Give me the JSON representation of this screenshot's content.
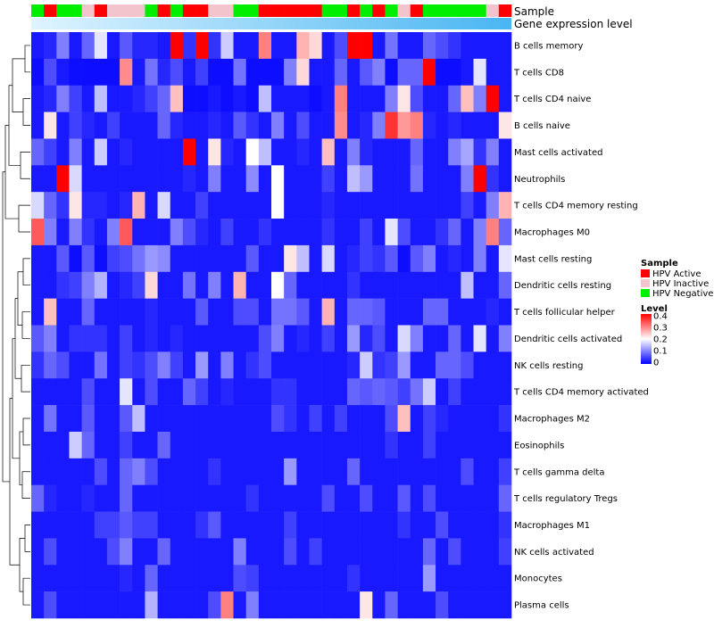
{
  "chart_data": {
    "type": "heatmap",
    "annotation_labels": {
      "sample": "Sample",
      "gene": "Gene expression level"
    },
    "rows": [
      "B cells memory",
      "T cells CD8",
      "T cells CD4 naive",
      "B cells naive",
      "Mast cells activated",
      "Neutrophils",
      "T cells CD4 memory resting",
      "Macrophages M0",
      "Mast cells resting",
      "Dendritic cells resting",
      "T cells follicular helper",
      "Dendritic cells activated",
      "NK cells resting",
      "T cells CD4 memory activated",
      "Macrophages M2",
      "Eosinophils",
      "T cells gamma delta",
      "T cells regulatory  Tregs",
      "Macrophages M1",
      "NK cells activated",
      "Monocytes",
      "Plasma cells"
    ],
    "sample_groups": [
      "Neg",
      "Act",
      "Neg",
      "Neg",
      "Ina",
      "Act",
      "Ina",
      "Ina",
      "Ina",
      "Neg",
      "Act",
      "Neg",
      "Act",
      "Act",
      "Ina",
      "Ina",
      "Neg",
      "Neg",
      "Act",
      "Act",
      "Act",
      "Act",
      "Act",
      "Neg",
      "Neg",
      "Act",
      "Neg",
      "Act",
      "Neg",
      "Ina",
      "Act",
      "Neg",
      "Neg",
      "Neg",
      "Neg",
      "Neg",
      "Ina",
      "Act"
    ],
    "gene_expression_trend": "increasing (light to dark blue)",
    "sample_legend": {
      "title": "Sample",
      "items": [
        {
          "label": "HPV Active",
          "color": "#ff0000",
          "key": "Act"
        },
        {
          "label": "HPV Inactive",
          "color": "#f4c4cc",
          "key": "Ina"
        },
        {
          "label": "HPV Negative",
          "color": "#00ee00",
          "key": "Neg"
        }
      ]
    },
    "level_legend": {
      "title": "Level",
      "ticks": [
        "0.4",
        "0.3",
        "0.2",
        "0.1",
        "0"
      ],
      "range": [
        0,
        0.4
      ]
    },
    "color_scale": {
      "low": "#0000ff",
      "mid": "#ffffff",
      "high": "#ff0000",
      "mid_value": 0.2
    },
    "values": [
      [
        0.02,
        0.03,
        0.1,
        0.02,
        0.08,
        0.18,
        0.02,
        0.07,
        0.03,
        0.03,
        0.02,
        0.4,
        0.04,
        0.4,
        0.04,
        0.16,
        0.02,
        0.02,
        0.3,
        0.02,
        0.02,
        0.26,
        0.23,
        0.02,
        0.06,
        0.4,
        0.4,
        0.02,
        0.09,
        0.02,
        0.02,
        0.08,
        0.06,
        0.04,
        0.02,
        0.02,
        0.02,
        0.02
      ],
      [
        0.01,
        0.06,
        0.02,
        0.01,
        0.01,
        0.01,
        0.01,
        0.29,
        0.02,
        0.09,
        0.03,
        0.06,
        0.02,
        0.05,
        0.01,
        0.01,
        0.09,
        0.01,
        0.01,
        0.01,
        0.1,
        0.23,
        0.02,
        0.02,
        0.08,
        0.02,
        0.07,
        0.1,
        0.01,
        0.08,
        0.08,
        0.4,
        0.01,
        0.01,
        0.02,
        0.18,
        0.02,
        0.02
      ],
      [
        0.02,
        0.03,
        0.1,
        0.05,
        0.02,
        0.15,
        0.02,
        0.02,
        0.03,
        0.05,
        0.08,
        0.25,
        0.01,
        0.01,
        0.02,
        0.01,
        0.02,
        0.01,
        0.15,
        0.02,
        0.02,
        0.02,
        0.01,
        0.02,
        0.3,
        0.02,
        0.02,
        0.02,
        0.1,
        0.22,
        0.06,
        0.02,
        0.02,
        0.08,
        0.25,
        0.1,
        0.4,
        0.02
      ],
      [
        0.02,
        0.22,
        0.02,
        0.05,
        0.03,
        0.02,
        0.05,
        0.02,
        0.02,
        0.02,
        0.08,
        0.03,
        0.02,
        0.02,
        0.03,
        0.02,
        0.07,
        0.04,
        0.02,
        0.1,
        0.02,
        0.06,
        0.02,
        0.02,
        0.29,
        0.02,
        0.03,
        0.1,
        0.36,
        0.28,
        0.3,
        0.03,
        0.02,
        0.03,
        0.02,
        0.02,
        0.02,
        0.22
      ],
      [
        0.08,
        0.05,
        0.02,
        0.1,
        0.02,
        0.16,
        0.02,
        0.03,
        0.02,
        0.02,
        0.02,
        0.02,
        0.4,
        0.02,
        0.22,
        0.03,
        0.02,
        0.2,
        0.15,
        0.02,
        0.02,
        0.03,
        0.02,
        0.25,
        0.02,
        0.1,
        0.03,
        0.02,
        0.02,
        0.02,
        0.08,
        0.02,
        0.02,
        0.1,
        0.13,
        0.04,
        0.1,
        0.02
      ],
      [
        0.02,
        0.02,
        0.4,
        0.17,
        0.02,
        0.02,
        0.02,
        0.02,
        0.02,
        0.02,
        0.02,
        0.02,
        0.03,
        0.02,
        0.1,
        0.02,
        0.02,
        0.11,
        0.02,
        0.2,
        0.02,
        0.02,
        0.02,
        0.05,
        0.02,
        0.15,
        0.12,
        0.02,
        0.02,
        0.02,
        0.09,
        0.02,
        0.02,
        0.02,
        0.1,
        0.4,
        0.04,
        0.02
      ],
      [
        0.17,
        0.08,
        0.04,
        0.22,
        0.03,
        0.03,
        0.02,
        0.03,
        0.26,
        0.02,
        0.17,
        0.02,
        0.02,
        0.05,
        0.02,
        0.02,
        0.02,
        0.02,
        0.02,
        0.2,
        0.02,
        0.02,
        0.02,
        0.03,
        0.02,
        0.02,
        0.02,
        0.02,
        0.02,
        0.02,
        0.02,
        0.02,
        0.02,
        0.02,
        0.05,
        0.02,
        0.1,
        0.26
      ],
      [
        0.33,
        0.1,
        0.02,
        0.1,
        0.04,
        0.02,
        0.1,
        0.33,
        0.02,
        0.02,
        0.02,
        0.1,
        0.06,
        0.03,
        0.02,
        0.05,
        0.02,
        0.02,
        0.04,
        0.02,
        0.02,
        0.02,
        0.02,
        0.04,
        0.02,
        0.02,
        0.05,
        0.02,
        0.18,
        0.06,
        0.02,
        0.02,
        0.04,
        0.08,
        0.02,
        0.1,
        0.3,
        0.08
      ],
      [
        0.02,
        0.02,
        0.07,
        0.01,
        0.07,
        0.01,
        0.05,
        0.06,
        0.09,
        0.12,
        0.11,
        0.02,
        0.02,
        0.02,
        0.02,
        0.02,
        0.02,
        0.07,
        0.02,
        0.02,
        0.22,
        0.15,
        0.02,
        0.17,
        0.02,
        0.03,
        0.05,
        0.04,
        0.07,
        0.01,
        0.07,
        0.1,
        0.02,
        0.03,
        0.02,
        0.1,
        0.02,
        0.18
      ],
      [
        0.02,
        0.02,
        0.04,
        0.05,
        0.1,
        0.14,
        0.02,
        0.03,
        0.05,
        0.23,
        0.02,
        0.02,
        0.09,
        0.02,
        0.1,
        0.02,
        0.26,
        0.02,
        0.02,
        0.2,
        0.08,
        0.02,
        0.02,
        0.02,
        0.02,
        0.04,
        0.02,
        0.02,
        0.02,
        0.02,
        0.02,
        0.02,
        0.02,
        0.02,
        0.15,
        0.02,
        0.02,
        0.08
      ],
      [
        0.02,
        0.25,
        0.02,
        0.02,
        0.08,
        0.02,
        0.02,
        0.02,
        0.02,
        0.03,
        0.02,
        0.02,
        0.02,
        0.07,
        0.02,
        0.02,
        0.06,
        0.06,
        0.02,
        0.09,
        0.09,
        0.07,
        0.02,
        0.26,
        0.02,
        0.08,
        0.08,
        0.07,
        0.02,
        0.02,
        0.02,
        0.08,
        0.08,
        0.02,
        0.02,
        0.02,
        0.03,
        0.02
      ],
      [
        0.07,
        0.1,
        0.02,
        0.04,
        0.04,
        0.04,
        0.02,
        0.05,
        0.02,
        0.03,
        0.02,
        0.03,
        0.02,
        0.02,
        0.02,
        0.02,
        0.02,
        0.02,
        0.06,
        0.1,
        0.02,
        0.03,
        0.02,
        0.05,
        0.02,
        0.12,
        0.03,
        0.06,
        0.02,
        0.17,
        0.1,
        0.02,
        0.02,
        0.08,
        0.02,
        0.18,
        0.02,
        0.1
      ],
      [
        0.04,
        0.08,
        0.06,
        0.02,
        0.02,
        0.09,
        0.02,
        0.05,
        0.04,
        0.06,
        0.1,
        0.05,
        0.02,
        0.12,
        0.02,
        0.1,
        0.02,
        0.04,
        0.06,
        0.02,
        0.02,
        0.02,
        0.02,
        0.02,
        0.02,
        0.03,
        0.16,
        0.04,
        0.05,
        0.12,
        0.02,
        0.02,
        0.08,
        0.08,
        0.06,
        0.02,
        0.02,
        0.02
      ],
      [
        0.02,
        0.02,
        0.02,
        0.02,
        0.06,
        0.02,
        0.02,
        0.18,
        0.02,
        0.06,
        0.02,
        0.02,
        0.08,
        0.05,
        0.02,
        0.03,
        0.02,
        0.02,
        0.02,
        0.04,
        0.04,
        0.02,
        0.02,
        0.02,
        0.02,
        0.08,
        0.07,
        0.08,
        0.07,
        0.05,
        0.09,
        0.16,
        0.02,
        0.05,
        0.02,
        0.02,
        0.02,
        0.02
      ],
      [
        0.02,
        0.09,
        0.02,
        0.02,
        0.07,
        0.02,
        0.02,
        0.07,
        0.15,
        0.02,
        0.02,
        0.02,
        0.02,
        0.02,
        0.02,
        0.02,
        0.02,
        0.02,
        0.02,
        0.06,
        0.04,
        0.02,
        0.05,
        0.02,
        0.05,
        0.02,
        0.02,
        0.02,
        0.06,
        0.25,
        0.02,
        0.05,
        0.03,
        0.02,
        0.02,
        0.02,
        0.02,
        0.04
      ],
      [
        0.02,
        0.02,
        0.02,
        0.16,
        0.08,
        0.02,
        0.02,
        0.05,
        0.02,
        0.02,
        0.08,
        0.02,
        0.02,
        0.02,
        0.02,
        0.02,
        0.02,
        0.02,
        0.02,
        0.02,
        0.02,
        0.02,
        0.02,
        0.02,
        0.02,
        0.02,
        0.02,
        0.02,
        0.04,
        0.02,
        0.02,
        0.05,
        0.02,
        0.02,
        0.02,
        0.02,
        0.02,
        0.02
      ],
      [
        0.02,
        0.02,
        0.02,
        0.02,
        0.02,
        0.06,
        0.02,
        0.08,
        0.1,
        0.06,
        0.02,
        0.02,
        0.02,
        0.02,
        0.04,
        0.02,
        0.02,
        0.02,
        0.02,
        0.02,
        0.12,
        0.02,
        0.02,
        0.02,
        0.02,
        0.08,
        0.02,
        0.02,
        0.02,
        0.02,
        0.02,
        0.02,
        0.02,
        0.02,
        0.06,
        0.02,
        0.02,
        0.05
      ],
      [
        0.08,
        0.03,
        0.02,
        0.02,
        0.03,
        0.02,
        0.02,
        0.08,
        0.02,
        0.02,
        0.02,
        0.02,
        0.02,
        0.02,
        0.02,
        0.02,
        0.02,
        0.04,
        0.02,
        0.02,
        0.02,
        0.02,
        0.02,
        0.06,
        0.02,
        0.02,
        0.06,
        0.02,
        0.02,
        0.07,
        0.02,
        0.06,
        0.02,
        0.02,
        0.02,
        0.02,
        0.02,
        0.08
      ],
      [
        0.02,
        0.02,
        0.02,
        0.02,
        0.02,
        0.05,
        0.05,
        0.07,
        0.05,
        0.05,
        0.02,
        0.02,
        0.02,
        0.04,
        0.07,
        0.02,
        0.02,
        0.02,
        0.02,
        0.02,
        0.05,
        0.02,
        0.02,
        0.02,
        0.02,
        0.02,
        0.02,
        0.02,
        0.02,
        0.04,
        0.02,
        0.02,
        0.06,
        0.02,
        0.02,
        0.02,
        0.02,
        0.04
      ],
      [
        0.02,
        0.06,
        0.02,
        0.02,
        0.02,
        0.02,
        0.06,
        0.1,
        0.02,
        0.02,
        0.08,
        0.02,
        0.02,
        0.02,
        0.02,
        0.02,
        0.1,
        0.02,
        0.02,
        0.02,
        0.06,
        0.02,
        0.05,
        0.02,
        0.02,
        0.02,
        0.02,
        0.02,
        0.02,
        0.02,
        0.02,
        0.08,
        0.02,
        0.06,
        0.02,
        0.02,
        0.02,
        0.05
      ],
      [
        0.02,
        0.02,
        0.02,
        0.02,
        0.02,
        0.02,
        0.02,
        0.03,
        0.02,
        0.08,
        0.02,
        0.02,
        0.02,
        0.02,
        0.02,
        0.02,
        0.06,
        0.05,
        0.02,
        0.02,
        0.02,
        0.02,
        0.02,
        0.02,
        0.02,
        0.04,
        0.02,
        0.02,
        0.02,
        0.02,
        0.02,
        0.12,
        0.02,
        0.02,
        0.02,
        0.02,
        0.02,
        0.02
      ],
      [
        0.02,
        0.06,
        0.02,
        0.02,
        0.02,
        0.02,
        0.02,
        0.02,
        0.02,
        0.14,
        0.02,
        0.02,
        0.02,
        0.02,
        0.06,
        0.3,
        0.02,
        0.1,
        0.02,
        0.02,
        0.02,
        0.02,
        0.02,
        0.02,
        0.02,
        0.02,
        0.22,
        0.02,
        0.08,
        0.02,
        0.02,
        0.02,
        0.06,
        0.02,
        0.02,
        0.02,
        0.02,
        0.02
      ]
    ]
  }
}
